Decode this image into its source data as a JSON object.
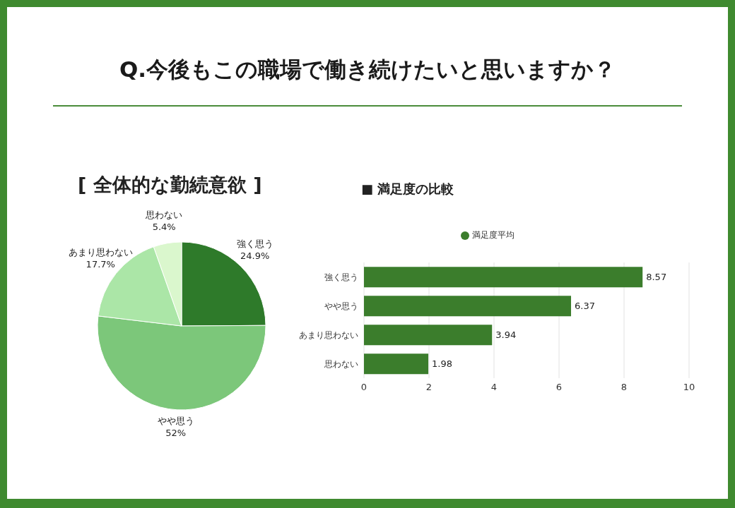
{
  "chart_data": [
    {
      "type": "pie",
      "title": "Q.今後もこの職場で働き続けたいと思いますか？",
      "subtitle": "[ 全体的な勤続意欲 ]",
      "categories": [
        "強く思う",
        "やや思う",
        "あまり思わない",
        "思わない"
      ],
      "values": [
        24.9,
        52,
        17.7,
        5.4
      ],
      "colors": [
        "#2e7a2a",
        "#7cc77a",
        "#abe6a7",
        "#daf7cd"
      ],
      "value_labels": [
        "24.9%",
        "52%",
        "17.7%",
        "5.4%"
      ]
    },
    {
      "type": "bar",
      "orientation": "horizontal",
      "title": "■ 満足度の比較",
      "categories": [
        "強く思う",
        "やや思う",
        "あまり思わない",
        "思わない"
      ],
      "series": [
        {
          "name": "満足度平均",
          "color": "#3b7d2c",
          "values": [
            8.57,
            6.37,
            3.94,
            1.98
          ]
        }
      ],
      "xlim": [
        0,
        10
      ],
      "xticks": [
        0,
        2,
        4,
        6,
        8,
        10
      ],
      "grid": "x",
      "legend": "top",
      "data_labels": true
    }
  ]
}
